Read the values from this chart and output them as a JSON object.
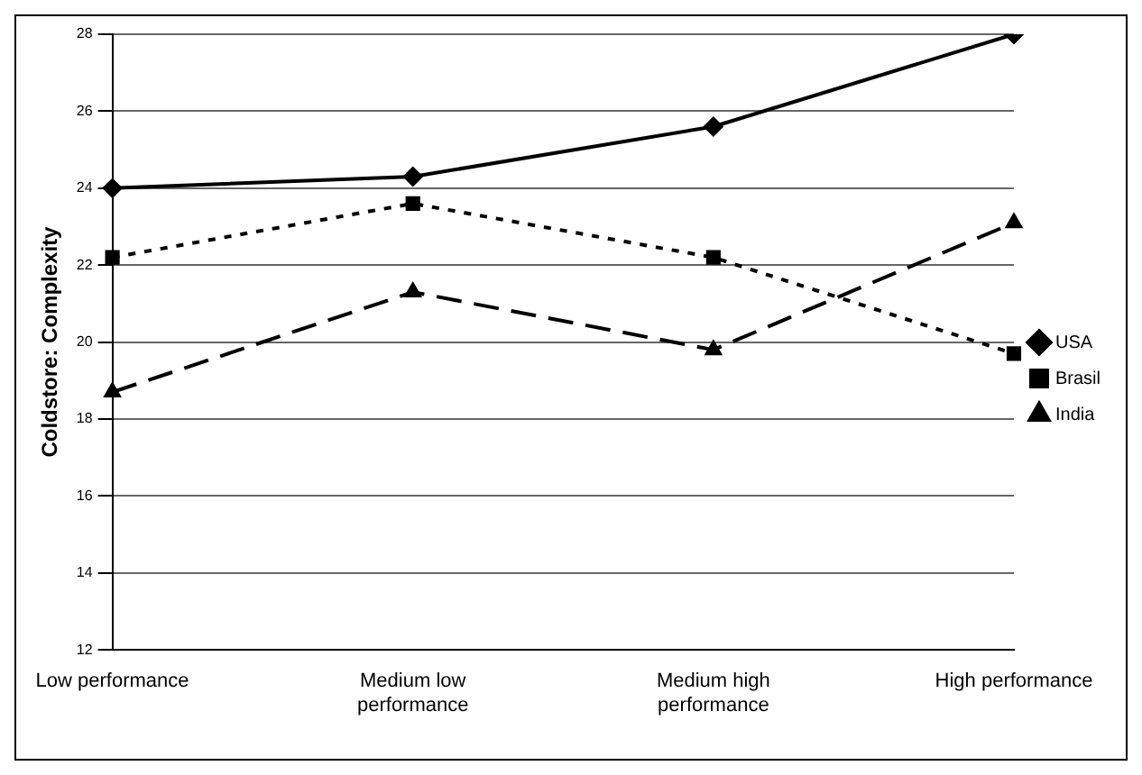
{
  "chart_data": {
    "type": "line",
    "ylabel": "Coldstore: Complexity",
    "categories": [
      "Low performance",
      "Medium low performance",
      "Medium high performance",
      "High performance"
    ],
    "series": [
      {
        "name": "USA",
        "color": "#000000",
        "values": [
          24.0,
          24.3,
          25.6,
          28.0
        ],
        "marker": "diamond",
        "line_style": "solid"
      },
      {
        "name": "Brasil",
        "color": "#000000",
        "values": [
          22.2,
          23.6,
          22.2,
          19.7
        ],
        "marker": "square",
        "line_style": "dotted"
      },
      {
        "name": "India",
        "color": "#000000",
        "values": [
          18.7,
          21.3,
          19.8,
          23.1
        ],
        "marker": "triangle",
        "line_style": "dashed"
      }
    ],
    "ylim": [
      12,
      28
    ],
    "yticks": [
      12,
      14,
      16,
      18,
      20,
      22,
      24,
      26,
      28
    ],
    "grid": "y",
    "legend": "right"
  }
}
